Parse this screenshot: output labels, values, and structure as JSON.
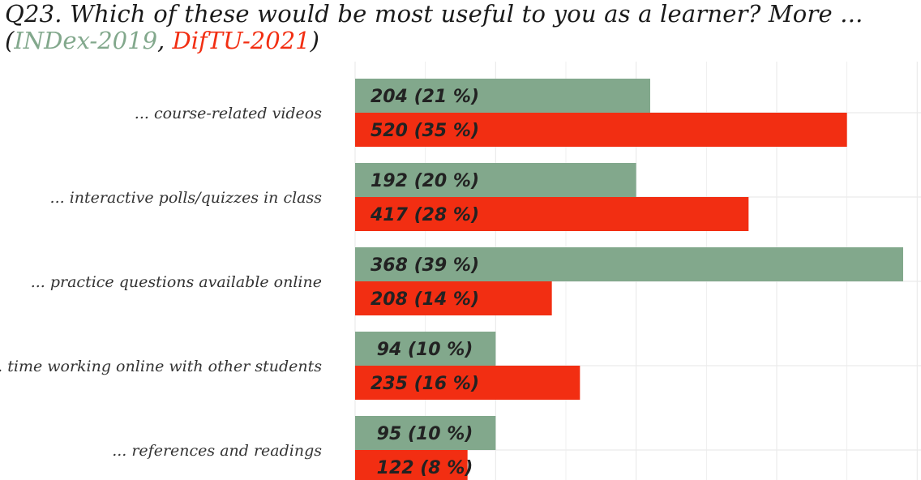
{
  "title": "Q23. Which of these would be most useful to you as a learner? More ...",
  "subtitle": {
    "open": "(",
    "series1": "INDex-2019",
    "sep": ",",
    "series2": "DifTU-2021",
    "close": ")"
  },
  "colors": {
    "series1": "#82a88c",
    "series2": "#f22e12",
    "grid": "#ebebeb"
  },
  "chart_data": {
    "type": "bar",
    "orientation": "horizontal",
    "categories": [
      "... course-related videos",
      "... interactive polls/quizzes in class",
      "... practice questions available online",
      "... time working online with other students",
      "... references and readings"
    ],
    "series": [
      {
        "name": "INDex-2019",
        "values": [
          21,
          20,
          39,
          10,
          10
        ],
        "labels": [
          "204  (21 %)",
          "192  (20 %)",
          "368  (39 %)",
          "94  (10 %)",
          "95  (10 %)"
        ]
      },
      {
        "name": "DifTU-2021",
        "values": [
          35,
          28,
          14,
          16,
          8
        ],
        "labels": [
          "520  (35 %)",
          "417  (28 %)",
          "208  (14 %)",
          "235  (16 %)",
          "122  (8 %)"
        ]
      }
    ],
    "xlim": [
      0,
      40
    ],
    "grid": true,
    "legend": "none"
  }
}
